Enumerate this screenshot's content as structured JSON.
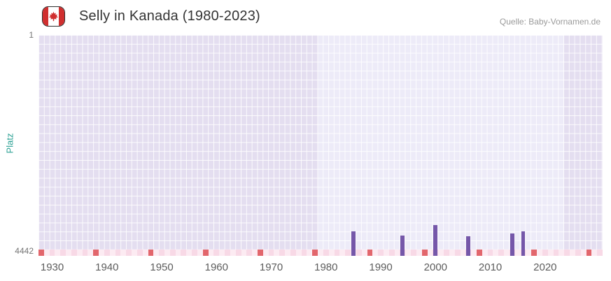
{
  "header": {
    "title": "Selly in Kanada (1980-2023)",
    "source": "Quelle: Baby-Vornamen.de",
    "flag_icon": "canada-flag-icon"
  },
  "axes": {
    "y_label": "Platz",
    "y_tick_top": "1",
    "y_tick_bottom": "4442",
    "x_ticks": [
      1930,
      1940,
      1950,
      1960,
      1970,
      1980,
      1990,
      2000,
      2010,
      2020
    ]
  },
  "chart_data": {
    "type": "bar",
    "title": "Selly in Kanada (1980-2023)",
    "xlabel": "",
    "ylabel": "Platz",
    "x_range": [
      1928,
      2030
    ],
    "y_axis": {
      "min": 1,
      "max": 4442,
      "inverted": true
    },
    "active_period": [
      1979,
      2023
    ],
    "grid": true,
    "legend": "none",
    "points": [
      {
        "year": 1985,
        "rank": 4010
      },
      {
        "year": 1994,
        "rank": 4100
      },
      {
        "year": 2000,
        "rank": 3880
      },
      {
        "year": 2006,
        "rank": 4120
      },
      {
        "year": 2014,
        "rank": 4050
      },
      {
        "year": 2016,
        "rank": 4010
      }
    ],
    "decade_marker_years": [
      1928,
      1938,
      1948,
      1958,
      1968,
      1978,
      1988,
      1998,
      2008,
      2018,
      2028
    ]
  },
  "colors": {
    "bar": "#7557a9",
    "plot_bg_outer": "#e4def0",
    "plot_bg_inner": "#edebf8",
    "grid": "rgba(255,255,255,0.85)",
    "strip_base": "#f8d9e6",
    "strip_alt": "#fcebf2",
    "strip_marker": "#e2666c",
    "flag_red": "#d02f2f",
    "y_label_color": "#2aa093",
    "title_color": "#333333",
    "source_color": "#9a9a9a"
  }
}
